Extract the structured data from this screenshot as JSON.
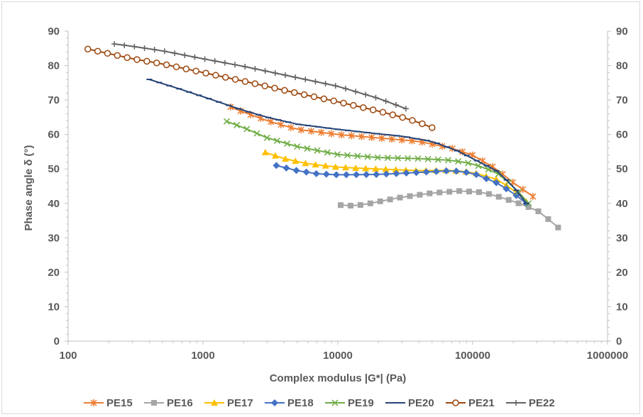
{
  "chart_data": {
    "type": "scatter",
    "xlabel": "Complex modulus |G*| (Pa)",
    "ylabel": "Phase angle δ (°)",
    "xscale": "log",
    "xlim": [
      100,
      1000000
    ],
    "ylim": [
      0,
      90
    ],
    "x_tick_labels": [
      "100",
      "1000",
      "10000",
      "100000",
      "1000000"
    ],
    "y_tick_labels": [
      "0",
      "10",
      "20",
      "30",
      "40",
      "50",
      "60",
      "70",
      "80",
      "90"
    ],
    "secondary_y_axis": true,
    "grid": false,
    "legend_position": "bottom",
    "series": [
      {
        "name": "PE15",
        "color": "#ed7d31",
        "marker": "asterisk",
        "points": [
          [
            1600,
            68
          ],
          [
            2000,
            66.5
          ],
          [
            3000,
            64
          ],
          [
            5000,
            61.5
          ],
          [
            10000,
            60
          ],
          [
            20000,
            59
          ],
          [
            40000,
            58
          ],
          [
            70000,
            56
          ],
          [
            100000,
            54
          ],
          [
            150000,
            50
          ],
          [
            200000,
            46
          ],
          [
            280000,
            42
          ]
        ]
      },
      {
        "name": "PE16",
        "color": "#a5a5a5",
        "marker": "square",
        "points": [
          [
            10500,
            39.5
          ],
          [
            13000,
            39.3
          ],
          [
            16000,
            39.7
          ],
          [
            20000,
            40.5
          ],
          [
            30000,
            41.8
          ],
          [
            50000,
            43
          ],
          [
            80000,
            43.6
          ],
          [
            120000,
            43.2
          ],
          [
            170000,
            41.5
          ],
          [
            220000,
            40
          ],
          [
            300000,
            38
          ],
          [
            350000,
            36
          ],
          [
            400000,
            34
          ],
          [
            430000,
            33
          ]
        ]
      },
      {
        "name": "PE17",
        "color": "#ffc000",
        "marker": "triangle",
        "points": [
          [
            2900,
            54.8
          ],
          [
            4000,
            53
          ],
          [
            6000,
            51.5
          ],
          [
            10000,
            50.5
          ],
          [
            20000,
            50
          ],
          [
            40000,
            49.5
          ],
          [
            70000,
            49.6
          ],
          [
            100000,
            49
          ],
          [
            150000,
            47
          ],
          [
            200000,
            44
          ],
          [
            250000,
            40.5
          ]
        ]
      },
      {
        "name": "PE18",
        "color": "#4472c4",
        "marker": "diamond",
        "points": [
          [
            3500,
            51
          ],
          [
            5000,
            49.5
          ],
          [
            7000,
            48.6
          ],
          [
            10000,
            48.3
          ],
          [
            20000,
            48.4
          ],
          [
            40000,
            49
          ],
          [
            70000,
            49.5
          ],
          [
            100000,
            48.8
          ],
          [
            150000,
            46
          ],
          [
            200000,
            43
          ],
          [
            250000,
            40
          ]
        ]
      },
      {
        "name": "PE19",
        "color": "#70ad47",
        "marker": "x",
        "points": [
          [
            1500,
            63.8
          ],
          [
            2000,
            62
          ],
          [
            3000,
            59
          ],
          [
            5000,
            56.5
          ],
          [
            10000,
            54.2
          ],
          [
            20000,
            53.3
          ],
          [
            40000,
            53
          ],
          [
            70000,
            52.5
          ],
          [
            100000,
            51.5
          ],
          [
            150000,
            49
          ],
          [
            200000,
            45
          ],
          [
            260000,
            40
          ]
        ]
      },
      {
        "name": "PE20",
        "color": "#264478",
        "marker": "dash",
        "points": [
          [
            400,
            76
          ],
          [
            700,
            73
          ],
          [
            1000,
            71
          ],
          [
            2000,
            67
          ],
          [
            3000,
            65
          ],
          [
            5000,
            63
          ],
          [
            10000,
            61.5
          ],
          [
            20000,
            60.2
          ],
          [
            30000,
            59.5
          ],
          [
            50000,
            58
          ],
          [
            80000,
            55
          ],
          [
            100000,
            53
          ],
          [
            150000,
            49.5
          ],
          [
            200000,
            45
          ],
          [
            250000,
            40
          ]
        ]
      },
      {
        "name": "PE21",
        "color": "#9e480e",
        "marker": "circle",
        "points": [
          [
            140,
            84.8
          ],
          [
            200,
            83.5
          ],
          [
            300,
            82
          ],
          [
            500,
            80.5
          ],
          [
            1000,
            78
          ],
          [
            2000,
            75.5
          ],
          [
            5000,
            72
          ],
          [
            10000,
            69.5
          ],
          [
            20000,
            66.8
          ],
          [
            30000,
            65
          ],
          [
            40000,
            63.5
          ],
          [
            50000,
            62
          ]
        ]
      },
      {
        "name": "PE22",
        "color": "#636363",
        "marker": "plus",
        "points": [
          [
            220,
            86.3
          ],
          [
            300,
            85.6
          ],
          [
            500,
            84.3
          ],
          [
            1000,
            82
          ],
          [
            2000,
            79.8
          ],
          [
            5000,
            76.5
          ],
          [
            10000,
            74
          ],
          [
            20000,
            70.5
          ],
          [
            32000,
            67.5
          ]
        ]
      }
    ]
  }
}
